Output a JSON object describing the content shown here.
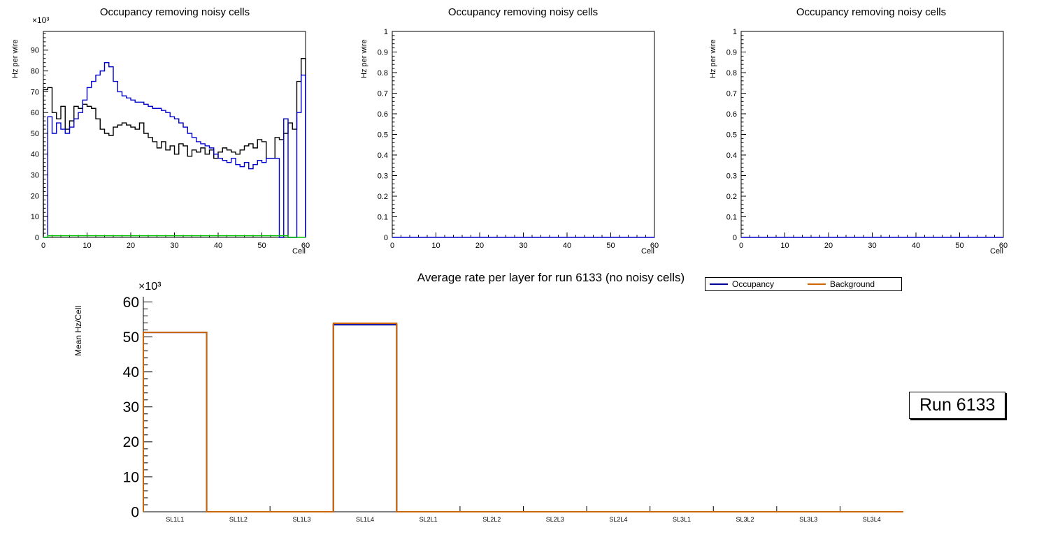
{
  "page": {
    "background": "#ffffff"
  },
  "run_label": {
    "text": "Run 6133"
  },
  "chart_data": [
    {
      "type": "line",
      "title": "Occupancy removing noisy cells",
      "xlabel": "Cell",
      "ylabel": "Hz per wire",
      "y_multiplier": "×10³",
      "xlim": [
        0,
        60
      ],
      "ylim": [
        0,
        99
      ],
      "x_major": 10,
      "x_minor": 2,
      "y_major": 10,
      "y_minor": 2,
      "grid": false,
      "series": [
        {
          "name": "histogram-black",
          "color": "#000000",
          "values": [
            71,
            72,
            60,
            57,
            63,
            52,
            56,
            63,
            62,
            64,
            63,
            62,
            57,
            52,
            50,
            49,
            53,
            54,
            55,
            54,
            53,
            52,
            55,
            50,
            48,
            46,
            43,
            46,
            42,
            44,
            40,
            45,
            44,
            39,
            42,
            41,
            43,
            40,
            42,
            38,
            41,
            43,
            42,
            41,
            40,
            42,
            44,
            45,
            43,
            47,
            46,
            38,
            38,
            48,
            47,
            50,
            55,
            52,
            75,
            86
          ]
        },
        {
          "name": "histogram-blue",
          "color": "#0000cc",
          "values": [
            0,
            58,
            50,
            55,
            52,
            50,
            53,
            57,
            60,
            66,
            72,
            75,
            78,
            80,
            84,
            82,
            75,
            70,
            68,
            67,
            66,
            65,
            65,
            64,
            63,
            62,
            62,
            61,
            60,
            58,
            57,
            55,
            53,
            50,
            48,
            46,
            45,
            44,
            43,
            40,
            38,
            37,
            36,
            38,
            35,
            34,
            36,
            33,
            35,
            37,
            36,
            38,
            38,
            38,
            0,
            57,
            0,
            0,
            60,
            78
          ]
        },
        {
          "name": "histogram-green",
          "color": "#00bf00",
          "values": [
            0,
            0.8,
            0.8,
            0.8,
            0.8,
            0.8,
            0.8,
            0.8,
            0.8,
            0.8,
            0.8,
            0.8,
            0.8,
            0.8,
            0.8,
            0.8,
            0.8,
            0.8,
            0.8,
            0.8,
            0.8,
            0.8,
            0.8,
            0.8,
            0.8,
            0.8,
            0.8,
            0.8,
            0.8,
            0.8,
            0.8,
            0.8,
            0.8,
            0.8,
            0.8,
            0.8,
            0.8,
            0.8,
            0.8,
            0.8,
            0.8,
            0.8,
            0.8,
            0.8,
            0.8,
            0.8,
            0.8,
            0.8,
            0.8,
            0.8,
            0.8,
            0.8,
            0.8,
            0.8,
            0.8,
            0.8,
            0,
            0,
            0,
            0
          ]
        }
      ]
    },
    {
      "type": "line",
      "title": "Occupancy removing noisy cells",
      "xlabel": "Cell",
      "ylabel": "Hz per wire",
      "xlim": [
        0,
        60
      ],
      "ylim": [
        0,
        1
      ],
      "x_major": 10,
      "x_minor": 2,
      "y_major": 0.1,
      "y_minor": 0.02,
      "grid": false,
      "series": [
        {
          "name": "histogram-blue-empty",
          "color": "#0000cc",
          "constant": 0,
          "bins": 60
        }
      ]
    },
    {
      "type": "line",
      "title": "Occupancy removing noisy cells",
      "xlabel": "Cell",
      "ylabel": "Hz per wire",
      "xlim": [
        0,
        60
      ],
      "ylim": [
        0,
        1
      ],
      "x_major": 10,
      "x_minor": 2,
      "y_major": 0.1,
      "y_minor": 0.02,
      "grid": false,
      "series": [
        {
          "name": "histogram-blue-empty",
          "color": "#0000cc",
          "constant": 0,
          "bins": 60
        }
      ]
    },
    {
      "type": "bar",
      "title": "Average rate per layer for run 6133 (no noisy cells)",
      "xlabel": "",
      "ylabel": "Mean Hz/Cell",
      "y_multiplier": "×10³",
      "categories": [
        "SL1L1",
        "SL1L2",
        "SL1L3",
        "SL1L4",
        "SL2L1",
        "SL2L2",
        "SL2L3",
        "SL2L4",
        "SL3L1",
        "SL3L2",
        "SL3L3",
        "SL3L4"
      ],
      "ylim": [
        0,
        61.5
      ],
      "y_major": 10,
      "y_minor": 2,
      "grid": false,
      "legend_position": "top-right",
      "series": [
        {
          "name": "Occupancy",
          "color": "#000099",
          "values": [
            51.3,
            0,
            0,
            53.5,
            0,
            0,
            0,
            0,
            0,
            0,
            0,
            0
          ]
        },
        {
          "name": "Background",
          "color": "#cc6600",
          "values": [
            51.3,
            0,
            0,
            53.9,
            0,
            0,
            0,
            0,
            0,
            0,
            0,
            0
          ]
        }
      ]
    }
  ]
}
